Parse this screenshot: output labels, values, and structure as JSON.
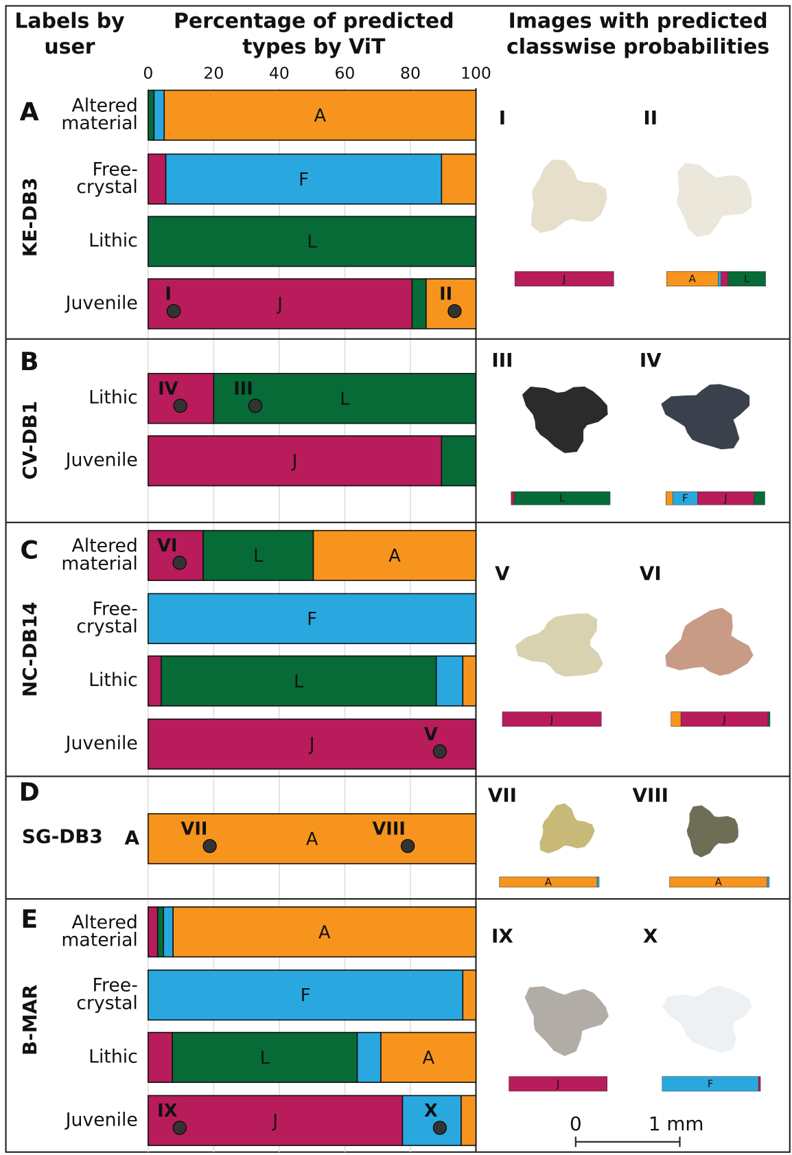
{
  "chart_data": {
    "type": "stacked-barh",
    "header": {
      "rows_title": [
        "Labels by",
        "user"
      ],
      "bars_title": [
        "Percentage of predicted",
        "types by ViT"
      ],
      "images_title": [
        "Images with predicted",
        "classwise probabilities"
      ]
    },
    "xlim": [
      0,
      100
    ],
    "xticks": [
      0,
      20,
      40,
      60,
      80,
      100
    ],
    "grid": true,
    "panels": [
      {
        "letter": "A",
        "sample": "KE-DB3",
        "rows": [
          {
            "label": [
              "Altered",
              "material"
            ],
            "segments": [
              {
                "value": 1.8,
                "color": "#066b37"
              },
              {
                "value": 3.1,
                "color": "#29a8e0"
              },
              {
                "value": 95.1,
                "color": "#f7941d",
                "label": "A"
              }
            ]
          },
          {
            "label": [
              "Free-",
              "crystal"
            ],
            "segments": [
              {
                "value": 5.4,
                "color": "#b81c5a"
              },
              {
                "value": 84.1,
                "color": "#29a8e0",
                "label": "F"
              },
              {
                "value": 10.5,
                "color": "#f7941d"
              }
            ]
          },
          {
            "label": [
              "Lithic"
            ],
            "segments": [
              {
                "value": 100,
                "color": "#066b37",
                "label": "L"
              }
            ]
          },
          {
            "label": [
              "Juvenile"
            ],
            "segments": [
              {
                "value": 80.5,
                "color": "#b81c5a",
                "label": "J"
              },
              {
                "value": 4.3,
                "color": "#066b37"
              },
              {
                "value": 15.2,
                "color": "#f7941d"
              }
            ],
            "markers": [
              {
                "label": "I",
                "x": 7.8
              },
              {
                "label": "II",
                "x": 93.5
              }
            ]
          }
        ],
        "images": [
          {
            "label": "I",
            "bar": [
              {
                "value": 100,
                "color": "#b81c5a",
                "label": "J"
              }
            ]
          },
          {
            "label": "II",
            "bar": [
              {
                "value": 52,
                "color": "#f7941d",
                "label": "A"
              },
              {
                "value": 3,
                "color": "#29a8e0"
              },
              {
                "value": 7,
                "color": "#b81c5a"
              },
              {
                "value": 38,
                "color": "#066b37",
                "label": "L"
              }
            ]
          }
        ]
      },
      {
        "letter": "B",
        "sample": "CV-DB1",
        "rows": [
          {
            "label": [
              "Lithic"
            ],
            "segments": [
              {
                "value": 20,
                "color": "#b81c5a"
              },
              {
                "value": 80,
                "color": "#066b37",
                "label": "L"
              }
            ],
            "markers": [
              {
                "label": "IV",
                "x": 9.8
              },
              {
                "label": "III",
                "x": 32.7
              }
            ]
          },
          {
            "label": [
              "Juvenile"
            ],
            "segments": [
              {
                "value": 89.5,
                "color": "#b81c5a",
                "label": "J"
              },
              {
                "value": 10.5,
                "color": "#066b37"
              }
            ]
          }
        ],
        "images": [
          {
            "label": "III",
            "bar": [
              {
                "value": 3,
                "color": "#b81c5a"
              },
              {
                "value": 97,
                "color": "#066b37",
                "label": "L"
              }
            ]
          },
          {
            "label": "IV",
            "bar": [
              {
                "value": 7,
                "color": "#f7941d"
              },
              {
                "value": 25,
                "color": "#29a8e0",
                "label": "F"
              },
              {
                "value": 57,
                "color": "#b81c5a",
                "label": "J"
              },
              {
                "value": 11,
                "color": "#066b37"
              }
            ]
          }
        ]
      },
      {
        "letter": "C",
        "sample": "NC-DB14",
        "rows": [
          {
            "label": [
              "Altered",
              "material"
            ],
            "segments": [
              {
                "value": 16.8,
                "color": "#b81c5a"
              },
              {
                "value": 33.6,
                "color": "#066b37",
                "label": "L"
              },
              {
                "value": 49.6,
                "color": "#f7941d",
                "label": "A"
              }
            ],
            "markers": [
              {
                "label": "VI",
                "x": 9.6
              }
            ]
          },
          {
            "label": [
              "Free-",
              "crystal"
            ],
            "segments": [
              {
                "value": 100,
                "color": "#29a8e0",
                "label": "F"
              }
            ]
          },
          {
            "label": [
              "Lithic"
            ],
            "segments": [
              {
                "value": 4,
                "color": "#b81c5a"
              },
              {
                "value": 83.9,
                "color": "#066b37",
                "label": "L"
              },
              {
                "value": 8.1,
                "color": "#29a8e0"
              },
              {
                "value": 4,
                "color": "#f7941d"
              }
            ]
          },
          {
            "label": [
              "Juvenile"
            ],
            "segments": [
              {
                "value": 100,
                "color": "#b81c5a",
                "label": "J"
              }
            ],
            "markers": [
              {
                "label": "V",
                "x": 89
              }
            ]
          }
        ],
        "images": [
          {
            "label": "V",
            "bar": [
              {
                "value": 100,
                "color": "#b81c5a",
                "label": "J"
              }
            ]
          },
          {
            "label": "VI",
            "bar": [
              {
                "value": 10,
                "color": "#f7941d"
              },
              {
                "value": 88,
                "color": "#b81c5a",
                "label": "J"
              },
              {
                "value": 2,
                "color": "#066b37"
              }
            ]
          }
        ]
      },
      {
        "letter": "D",
        "sample": "SG-DB3",
        "rows": [
          {
            "label": [
              "A"
            ],
            "segments": [
              {
                "value": 100,
                "color": "#f7941d",
                "label": "A"
              }
            ],
            "markers": [
              {
                "label": "VII",
                "x": 18.8
              },
              {
                "label": "VIII",
                "x": 79.2
              }
            ]
          }
        ],
        "images": [
          {
            "label": "VII",
            "bar": [
              {
                "value": 98,
                "color": "#f7941d",
                "label": "A"
              },
              {
                "value": 2,
                "color": "#29a8e0"
              }
            ]
          },
          {
            "label": "VIII",
            "bar": [
              {
                "value": 98,
                "color": "#f7941d",
                "label": "A"
              },
              {
                "value": 2,
                "color": "#29a8e0"
              }
            ]
          }
        ]
      },
      {
        "letter": "E",
        "sample": "B-MAR",
        "rows": [
          {
            "label": [
              "Altered",
              "material"
            ],
            "segments": [
              {
                "value": 2.9,
                "color": "#b81c5a"
              },
              {
                "value": 1.8,
                "color": "#066b37"
              },
              {
                "value": 2.9,
                "color": "#29a8e0"
              },
              {
                "value": 92.4,
                "color": "#f7941d",
                "label": "A"
              }
            ]
          },
          {
            "label": [
              "Free-",
              "crystal"
            ],
            "segments": [
              {
                "value": 96,
                "color": "#29a8e0",
                "label": "F"
              },
              {
                "value": 4,
                "color": "#f7941d"
              }
            ]
          },
          {
            "label": [
              "Lithic"
            ],
            "segments": [
              {
                "value": 7.4,
                "color": "#b81c5a"
              },
              {
                "value": 56.4,
                "color": "#066b37",
                "label": "L"
              },
              {
                "value": 7.2,
                "color": "#29a8e0"
              },
              {
                "value": 29,
                "color": "#f7941d",
                "label": "A"
              }
            ]
          },
          {
            "label": [
              "Juvenile"
            ],
            "segments": [
              {
                "value": 77.6,
                "color": "#b81c5a",
                "label": "J"
              },
              {
                "value": 17.9,
                "color": "#29a8e0"
              },
              {
                "value": 4.5,
                "color": "#f7941d"
              }
            ],
            "markers": [
              {
                "label": "IX",
                "x": 9.6
              },
              {
                "label": "X",
                "x": 89
              }
            ]
          }
        ],
        "images": [
          {
            "label": "IX",
            "bar": [
              {
                "value": 100,
                "color": "#b81c5a",
                "label": "J"
              }
            ]
          },
          {
            "label": "X",
            "bar": [
              {
                "value": 98,
                "color": "#29a8e0",
                "label": "F"
              },
              {
                "value": 2,
                "color": "#b81c5a"
              }
            ]
          }
        ]
      }
    ],
    "scale_bar": {
      "labels": [
        "0",
        "1 mm"
      ]
    }
  }
}
